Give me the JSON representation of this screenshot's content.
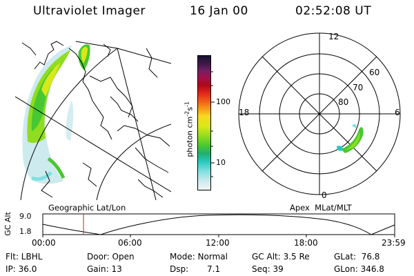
{
  "header": {
    "instrument": "Ultraviolet Imager",
    "date": "16 Jan 00",
    "time": "02:52:08 UT"
  },
  "colorbar": {
    "label": "photon cm",
    "label_sup1": "-2",
    "label_mid": "s",
    "label_sup2": "-1",
    "tick_100": "100",
    "tick_10": "10",
    "colors": [
      "#f4f4f4",
      "#c8e8ec",
      "#7ee0e0",
      "#28c8c0",
      "#20b070",
      "#48c830",
      "#90dc20",
      "#d8e818",
      "#f8d820",
      "#f8a018",
      "#f06018",
      "#e02818",
      "#b00818",
      "#a01050",
      "#702060",
      "#401848",
      "#181030"
    ]
  },
  "polar": {
    "mlt_12": "12",
    "mlt_18": "18",
    "mlt_6": "6",
    "mlt_0": "0",
    "lat_60": "60",
    "lat_70": "70",
    "lat_80": "80"
  },
  "timeline": {
    "left_label": "Geographic Lat/Lon",
    "right_label": "Apex  MLat/MLT",
    "axis_title": "GC Alt",
    "y_top": "9.0",
    "y_bottom": "1.8",
    "ticks": [
      "00:00",
      "06:00",
      "12:00",
      "18:00",
      "23:59"
    ],
    "marker_color": "#d02020"
  },
  "footer": {
    "flt": "Flt: LBHL",
    "ip": "IP: 36.0",
    "door": "Door: Open",
    "gain": "Gain: 13",
    "mode": "Mode: Normal",
    "dsp_label": "Dsp:",
    "dsp_value": "7.1",
    "gc_alt": "GC Alt: 3.5 Re",
    "seq": "Seq: 39",
    "glat": "GLat:  76.8",
    "glon": "GLon: 346.8"
  }
}
